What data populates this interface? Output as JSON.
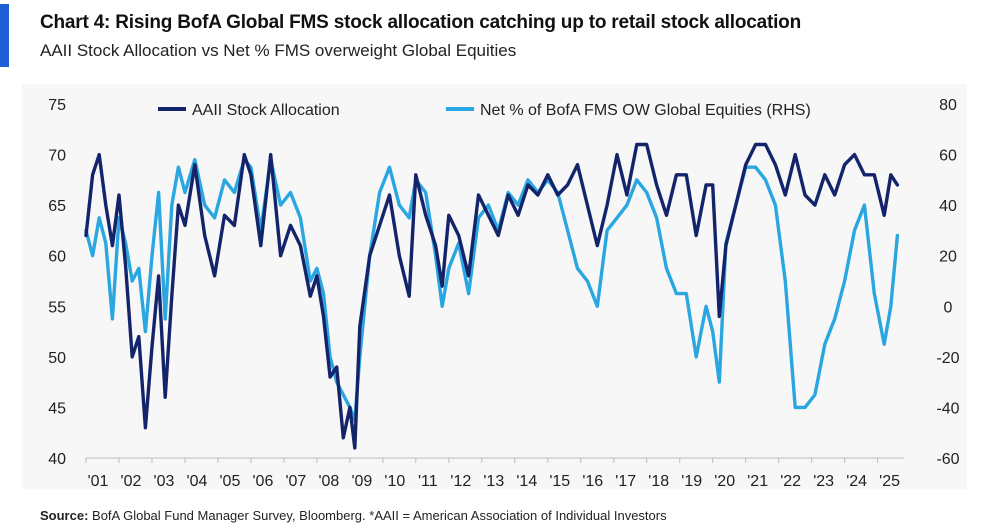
{
  "header": {
    "title": "Chart 4: Rising BofA Global FMS stock allocation catching up to retail stock allocation",
    "subtitle": "AAII Stock Allocation vs Net % FMS overweight Global Equities"
  },
  "footer": {
    "source_label": "Source:",
    "source_text": " BofA Global Fund Manager Survey, Bloomberg. *AAII = American Association of Individual Investors"
  },
  "colors": {
    "accent": "#1f5fd6",
    "aaii": "#14246b",
    "fms": "#2aa6e0"
  },
  "chart_data": {
    "type": "line",
    "title": "Chart 4: Rising BofA Global FMS stock allocation catching up to retail stock allocation",
    "x_range": [
      2001,
      2025.8
    ],
    "x_ticks": [
      "'01",
      "'02",
      "'03",
      "'04",
      "'05",
      "'06",
      "'07",
      "'08",
      "'09",
      "'10",
      "'11",
      "'12",
      "'13",
      "'14",
      "'15",
      "'16",
      "'17",
      "'18",
      "'19",
      "'20",
      "'21",
      "'22",
      "'23",
      "'24",
      "'25"
    ],
    "y_left": {
      "range": [
        40,
        75
      ],
      "ticks": [
        40,
        45,
        50,
        55,
        60,
        65,
        70,
        75
      ]
    },
    "y_right": {
      "range": [
        -60,
        80
      ],
      "ticks": [
        -60,
        -40,
        -20,
        0,
        20,
        40,
        60,
        80
      ]
    },
    "legend": {
      "position": "top",
      "entries": [
        "AAII Stock Allocation",
        "Net % of BofA FMS OW Global Equities (RHS)"
      ]
    },
    "series": [
      {
        "name": "AAII Stock Allocation",
        "axis": "left",
        "x": [
          2001.0,
          2001.2,
          2001.4,
          2001.6,
          2001.8,
          2002.0,
          2002.2,
          2002.4,
          2002.6,
          2002.8,
          2003.0,
          2003.2,
          2003.4,
          2003.6,
          2003.8,
          2004.0,
          2004.3,
          2004.6,
          2004.9,
          2005.2,
          2005.5,
          2005.8,
          2006.0,
          2006.3,
          2006.6,
          2006.9,
          2007.2,
          2007.5,
          2007.8,
          2008.0,
          2008.2,
          2008.4,
          2008.6,
          2008.8,
          2009.0,
          2009.15,
          2009.3,
          2009.6,
          2009.9,
          2010.2,
          2010.5,
          2010.8,
          2011.0,
          2011.3,
          2011.6,
          2011.8,
          2012.0,
          2012.3,
          2012.6,
          2012.9,
          2013.2,
          2013.5,
          2013.8,
          2014.1,
          2014.4,
          2014.7,
          2015.0,
          2015.3,
          2015.6,
          2015.9,
          2016.2,
          2016.5,
          2016.8,
          2017.1,
          2017.4,
          2017.7,
          2018.0,
          2018.3,
          2018.6,
          2018.9,
          2019.2,
          2019.5,
          2019.8,
          2020.0,
          2020.2,
          2020.4,
          2020.7,
          2021.0,
          2021.3,
          2021.6,
          2021.9,
          2022.2,
          2022.5,
          2022.8,
          2023.1,
          2023.4,
          2023.7,
          2024.0,
          2024.3,
          2024.6,
          2024.9,
          2025.2,
          2025.4,
          2025.6
        ],
        "values": [
          62,
          68,
          70,
          65,
          61,
          66,
          59,
          50,
          52,
          43,
          51,
          58,
          46,
          56,
          65,
          63,
          69,
          62,
          58,
          64,
          63,
          70,
          68,
          61,
          70,
          60,
          63,
          61,
          56,
          58,
          54,
          48,
          49,
          42,
          45,
          41,
          53,
          60,
          63,
          66,
          60,
          56,
          68,
          64,
          61,
          57,
          64,
          62,
          58,
          66,
          64,
          62,
          66,
          64,
          67,
          66,
          68,
          66,
          67,
          69,
          65,
          61,
          65,
          70,
          66,
          71,
          71,
          67,
          64,
          68,
          68,
          62,
          67,
          67,
          54,
          61,
          65,
          69,
          71,
          71,
          69,
          66,
          70,
          66,
          65,
          68,
          66,
          69,
          70,
          68,
          68,
          64,
          68,
          67
        ]
      },
      {
        "name": "Net % of BofA FMS OW Global Equities (RHS)",
        "axis": "right",
        "x": [
          2001.0,
          2001.2,
          2001.4,
          2001.6,
          2001.8,
          2002.0,
          2002.2,
          2002.4,
          2002.6,
          2002.8,
          2003.0,
          2003.2,
          2003.4,
          2003.6,
          2003.8,
          2004.0,
          2004.3,
          2004.6,
          2004.9,
          2005.2,
          2005.5,
          2005.8,
          2006.0,
          2006.3,
          2006.6,
          2006.9,
          2007.2,
          2007.5,
          2007.8,
          2008.0,
          2008.2,
          2008.4,
          2008.6,
          2008.8,
          2009.0,
          2009.15,
          2009.3,
          2009.6,
          2009.9,
          2010.2,
          2010.5,
          2010.8,
          2011.0,
          2011.3,
          2011.6,
          2011.8,
          2012.0,
          2012.3,
          2012.6,
          2012.9,
          2013.2,
          2013.5,
          2013.8,
          2014.1,
          2014.4,
          2014.7,
          2015.0,
          2015.3,
          2015.6,
          2015.9,
          2016.2,
          2016.5,
          2016.8,
          2017.1,
          2017.4,
          2017.7,
          2018.0,
          2018.3,
          2018.6,
          2018.9,
          2019.2,
          2019.5,
          2019.8,
          2020.0,
          2020.2,
          2020.4,
          2020.7,
          2021.0,
          2021.3,
          2021.6,
          2021.9,
          2022.2,
          2022.5,
          2022.8,
          2023.1,
          2023.4,
          2023.7,
          2024.0,
          2024.3,
          2024.6,
          2024.9,
          2025.2,
          2025.4,
          2025.6
        ],
        "values": [
          30,
          20,
          35,
          25,
          -5,
          35,
          25,
          10,
          15,
          -10,
          20,
          45,
          -5,
          40,
          55,
          45,
          58,
          40,
          35,
          50,
          45,
          58,
          55,
          30,
          58,
          40,
          45,
          35,
          10,
          15,
          5,
          -20,
          -30,
          -35,
          -40,
          -45,
          -20,
          20,
          45,
          55,
          40,
          35,
          50,
          45,
          20,
          0,
          15,
          25,
          5,
          35,
          40,
          30,
          45,
          40,
          50,
          45,
          50,
          45,
          30,
          15,
          10,
          0,
          30,
          35,
          40,
          50,
          45,
          35,
          15,
          5,
          5,
          -20,
          0,
          -10,
          -30,
          25,
          40,
          55,
          55,
          50,
          40,
          10,
          -40,
          -40,
          -35,
          -15,
          -5,
          10,
          30,
          40,
          5,
          -15,
          0,
          28
        ]
      }
    ]
  }
}
